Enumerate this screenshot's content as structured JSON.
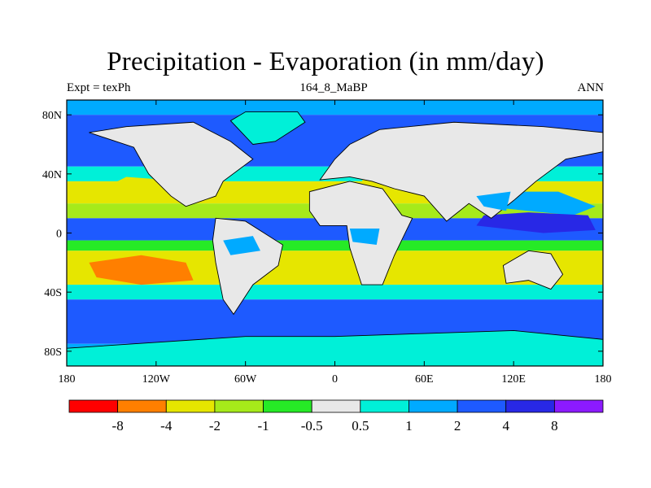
{
  "chart_data": {
    "type": "heatmap",
    "title": "Precipitation - Evaporation (in mm/day)",
    "subtitle_left": "Expt = texPh",
    "subtitle_center": "164_8_MaBP",
    "subtitle_right": "ANN",
    "x_ticks": [
      "180",
      "120W",
      "60W",
      "0",
      "60E",
      "120E",
      "180"
    ],
    "y_ticks": [
      "80N",
      "40N",
      "0",
      "40S",
      "80S"
    ],
    "x_tick_values": [
      -180,
      -120,
      -60,
      0,
      60,
      120,
      180
    ],
    "y_tick_values": [
      80,
      40,
      0,
      -40,
      -80
    ],
    "xlim": [
      -180,
      180
    ],
    "ylim": [
      -90,
      90
    ],
    "colorbar": {
      "levels": [
        "-8",
        "-4",
        "-2",
        "-1",
        "-0.5",
        "0.5",
        "1",
        "2",
        "4",
        "8"
      ],
      "level_values": [
        -8,
        -4,
        -2,
        -1,
        -0.5,
        0.5,
        1,
        2,
        4,
        8
      ],
      "colors": [
        "#ff0000",
        "#ff7f00",
        "#e6e600",
        "#a6ea1a",
        "#26ea26",
        "#e8e8e8",
        "#00f0d8",
        "#00aaff",
        "#1e5aff",
        "#2828e6",
        "#8c1aff"
      ]
    },
    "zonal_bands": [
      {
        "lat_range": [
          80,
          90
        ],
        "value": 1.0
      },
      {
        "lat_range": [
          60,
          80
        ],
        "value": 2.5
      },
      {
        "lat_range": [
          45,
          60
        ],
        "value": 3.0
      },
      {
        "lat_range": [
          35,
          45
        ],
        "value": 0.7
      },
      {
        "lat_range": [
          20,
          35
        ],
        "value": -2.5
      },
      {
        "lat_range": [
          10,
          20
        ],
        "value": -1.5
      },
      {
        "lat_range": [
          -5,
          10
        ],
        "value": 3.0
      },
      {
        "lat_range": [
          -12,
          -5
        ],
        "value": -1.0
      },
      {
        "lat_range": [
          -35,
          -12
        ],
        "value": -3.0
      },
      {
        "lat_range": [
          -45,
          -35
        ],
        "value": 0.7
      },
      {
        "lat_range": [
          -75,
          -45
        ],
        "value": 3.0
      },
      {
        "lat_range": [
          -90,
          -75
        ],
        "value": 1.0
      }
    ]
  }
}
